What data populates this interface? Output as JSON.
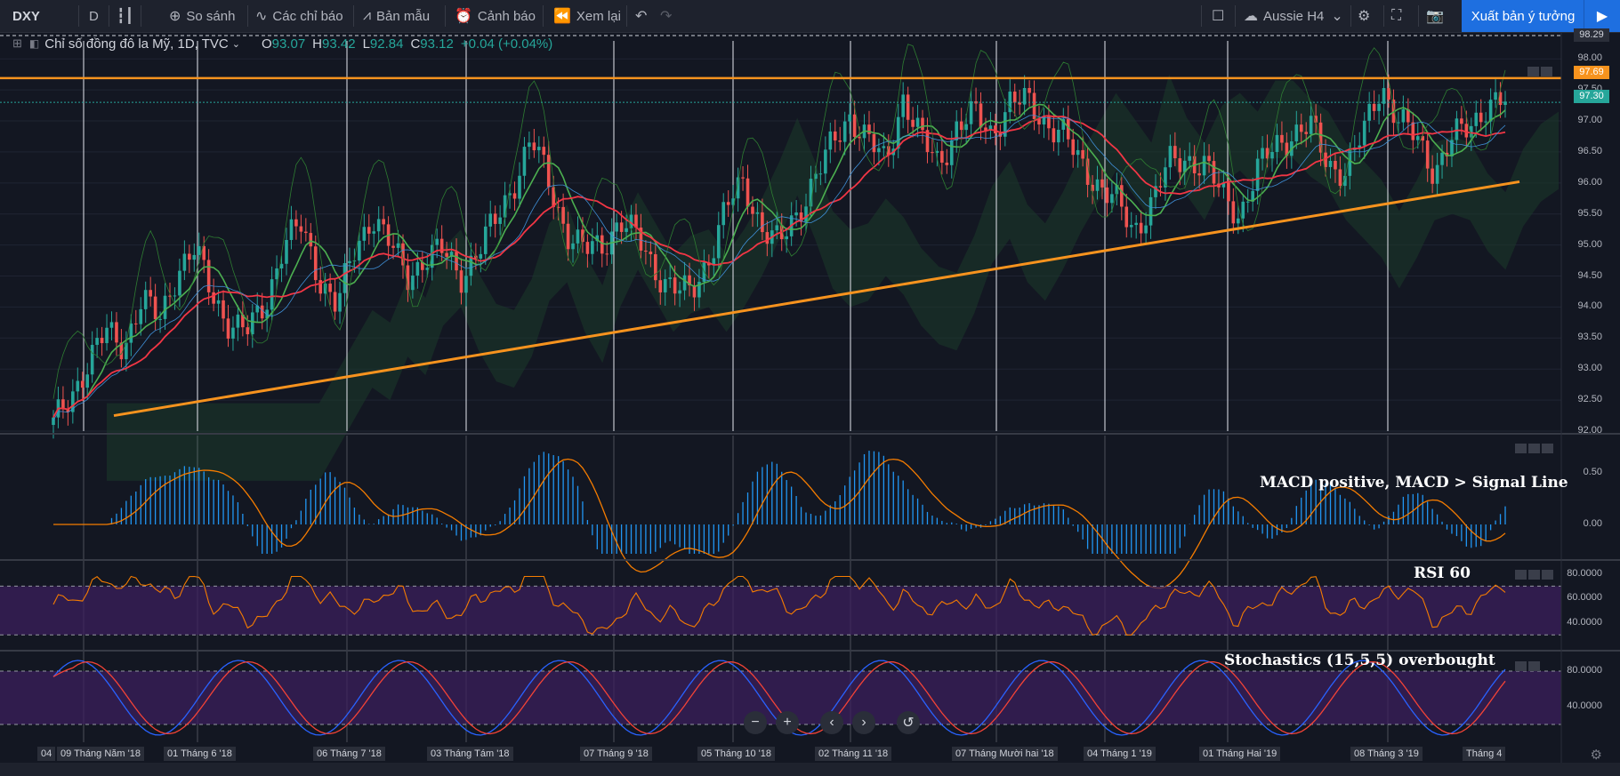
{
  "toolbar": {
    "symbol": "DXY",
    "interval": "D",
    "compare": "So sánh",
    "indicators": "Các chỉ báo",
    "templates": "Bản mẫu",
    "alerts": "Cảnh báo",
    "replay": "Xem lại",
    "account": "Aussie H4",
    "publish": "Xuất bản ý tưởng"
  },
  "legend": {
    "title": "Chỉ số đồng đô la Mỹ, 1D, TVC",
    "o_label": "O",
    "o_value": "93.07",
    "h_label": "H",
    "h_value": "93.42",
    "l_label": "L",
    "l_value": "92.84",
    "c_label": "C",
    "c_value": "93.12",
    "change": "+0.04 (+0.04%)"
  },
  "price_tags": {
    "top": "98.29",
    "resistance": "97.69",
    "last": "97.30"
  },
  "price_axis": [
    "98.00",
    "97.50",
    "97.00",
    "96.50",
    "96.00",
    "95.50",
    "95.00",
    "94.50",
    "94.00",
    "93.50",
    "93.00",
    "92.50",
    "92.00"
  ],
  "macd_axis": [
    "0.50",
    "0.00"
  ],
  "rsi_axis": [
    "80.0000",
    "60.0000",
    "40.0000"
  ],
  "stoch_axis": [
    "80.0000",
    "40.0000"
  ],
  "annotations": {
    "macd": "MACD positive, MACD > Signal Line",
    "rsi": "RSI 60",
    "stoch": "Stochastics (15,5,5) overbought"
  },
  "time_axis": [
    "04",
    "09 Tháng Năm '18",
    "01 Tháng 6 '18",
    "06 Tháng 7 '18",
    "03 Tháng Tám '18",
    "07 Tháng 9 '18",
    "05 Tháng 10 '18",
    "02 Tháng 11 '18",
    "07 Tháng Mười hai '18",
    "04 Tháng 1 '19",
    "01 Tháng Hai '19",
    "08 Tháng 3 '19",
    "Tháng 4"
  ],
  "nav": {
    "zoom_out": "−",
    "zoom_in": "+",
    "prev": "‹",
    "next": "›",
    "reset": "↺"
  },
  "colors": {
    "background": "#131722",
    "up": "#26a69a",
    "down": "#ef5350",
    "trendline": "#f7931e",
    "ma_fast": "#4caf50",
    "ma_slow": "#f23645",
    "macd_hist": "#2196f3",
    "signal": "#f57c00",
    "osc_band": "#3b1f5c",
    "stoch_k": "#2962ff",
    "stoch_d": "#f44336",
    "publish": "#1e6fe0"
  },
  "chart_data": {
    "type": "line",
    "title": "Chỉ số đồng đô la Mỹ, 1D, TVC",
    "price_range": [
      92.0,
      98.29
    ],
    "close_path": [
      92.1,
      92.6,
      93.1,
      93.6,
      93.4,
      94.1,
      93.8,
      94.6,
      94.9,
      94.2,
      93.7,
      93.6,
      94.1,
      95.0,
      95.3,
      94.5,
      94.0,
      94.9,
      95.5,
      95.0,
      94.5,
      94.8,
      94.9,
      94.5,
      94.9,
      95.4,
      96.0,
      96.7,
      96.0,
      95.2,
      94.9,
      95.0,
      95.4,
      95.1,
      94.6,
      94.3,
      94.2,
      94.8,
      95.6,
      96.0,
      95.3,
      95.0,
      95.5,
      96.1,
      96.6,
      97.1,
      96.7,
      96.3,
      97.4,
      96.7,
      96.3,
      96.9,
      97.1,
      96.8,
      97.3,
      97.3,
      97.0,
      96.8,
      96.3,
      96.0,
      95.7,
      95.2,
      95.7,
      96.3,
      96.4,
      96.3,
      95.8,
      95.5,
      96.2,
      96.6,
      96.8,
      96.9,
      96.3,
      96.2,
      96.8,
      97.6,
      97.0,
      96.7,
      96.2,
      96.7,
      96.9,
      97.3,
      97.3
    ],
    "trendlines": [
      {
        "name": "ascending support",
        "from": 92.25,
        "to": 96.02
      },
      {
        "name": "horizontal resistance",
        "level": 97.69
      }
    ],
    "rsi_last": 60,
    "stoch_params": "15,5,5"
  }
}
